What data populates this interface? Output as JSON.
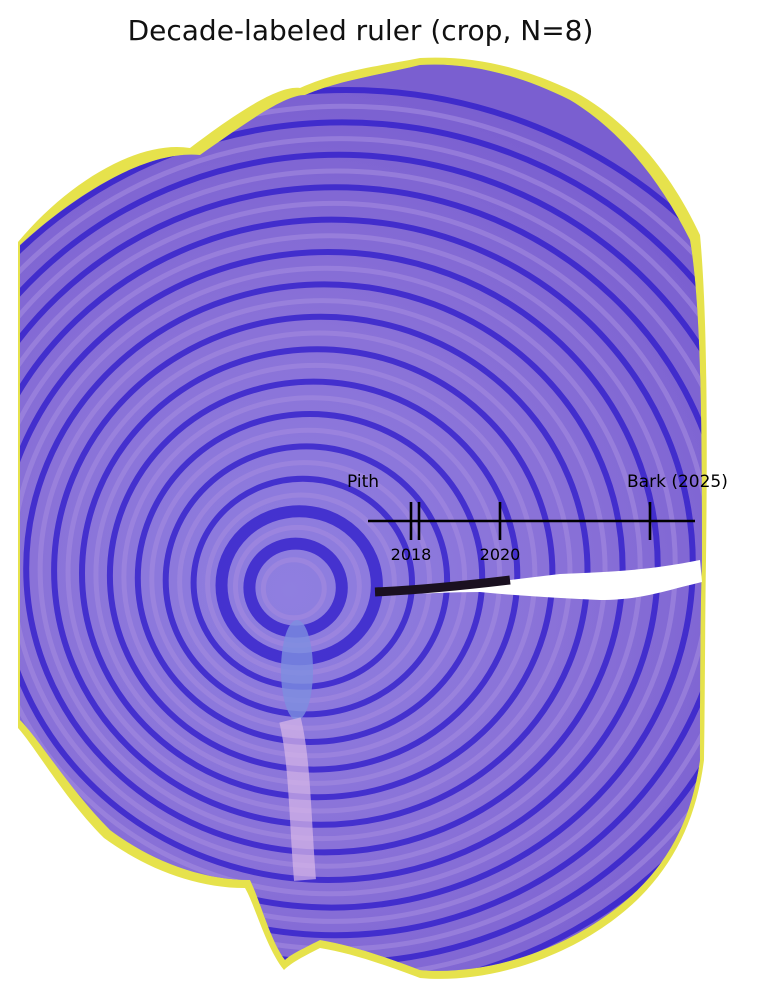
{
  "figure": {
    "title": "Decade-labeled ruler (crop, N=8)"
  },
  "ruler": {
    "start_label": "Pith",
    "end_label": "Bark (2025)",
    "ticks": [
      {
        "year": 2017,
        "label": ""
      },
      {
        "year": 2018,
        "label": "2018"
      },
      {
        "year": 2020,
        "label": "2020"
      },
      {
        "year": 2024,
        "label": ""
      }
    ],
    "tick_labels": [
      "2018",
      "2020"
    ]
  },
  "colors": {
    "ring_dark": "#2c19c9",
    "ring_light": "#a48ae0",
    "bark": "#e8e24a",
    "ruler": "#000000"
  }
}
